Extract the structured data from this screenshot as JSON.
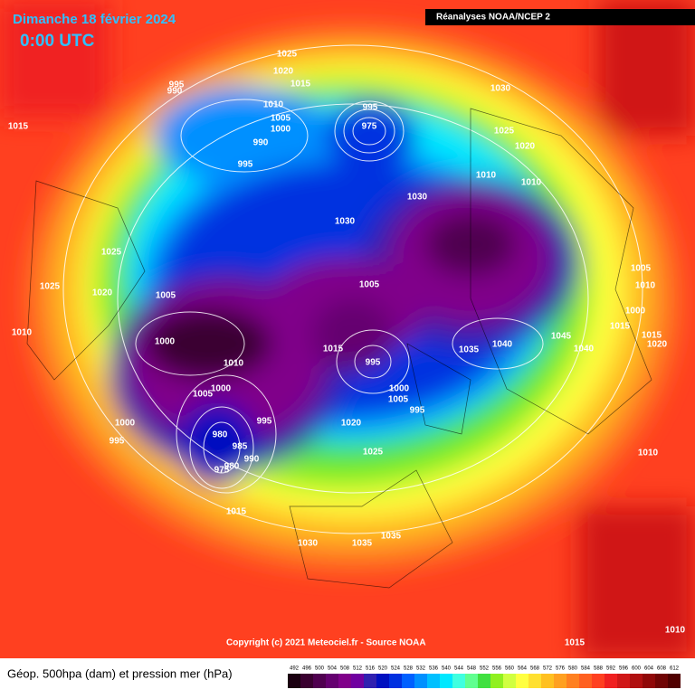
{
  "header": {
    "date": "Dimanche 18 février 2024",
    "time": "0:00 UTC",
    "source": "Réanalyses NOAA/NCEP 2"
  },
  "footer": {
    "copyright": "Copyright (c) 2021 Meteociel.fr - Source NOAA",
    "legend_title": "Géop. 500hpa (dam) et pression mer (hPa)"
  },
  "scale": {
    "values": [
      492,
      496,
      500,
      504,
      508,
      512,
      516,
      520,
      524,
      528,
      532,
      536,
      540,
      544,
      548,
      552,
      556,
      560,
      564,
      568,
      572,
      576,
      580,
      584,
      588,
      592,
      596,
      600,
      604,
      608,
      612
    ],
    "colors": [
      "#1a0010",
      "#3a0030",
      "#500050",
      "#650070",
      "#80008a",
      "#7000a0",
      "#3020b0",
      "#0010c0",
      "#0030e0",
      "#0060ff",
      "#0090ff",
      "#00c0ff",
      "#00e8ff",
      "#40ffe0",
      "#60ff90",
      "#40e040",
      "#90f020",
      "#d0ff40",
      "#ffff40",
      "#ffe030",
      "#ffc020",
      "#ffa020",
      "#ff8020",
      "#ff6020",
      "#ff4020",
      "#f02020",
      "#d01818",
      "#b01010",
      "#900808",
      "#700404",
      "#500000"
    ]
  },
  "isobar_labels": [
    "1015",
    "1025",
    "1020",
    "1015",
    "995",
    "990",
    "1010",
    "1005",
    "1000",
    "990",
    "995",
    "995",
    "975",
    "1030",
    "1025",
    "1020",
    "1010",
    "1010",
    "1030",
    "1030",
    "1025",
    "1025",
    "1020",
    "1005",
    "1005",
    "1010",
    "1000",
    "1015",
    "995",
    "1010",
    "1035",
    "1040",
    "1045",
    "1040",
    "1005",
    "1010",
    "1000",
    "1015",
    "1015",
    "1020",
    "1005",
    "1000",
    "1000",
    "1005",
    "995",
    "995",
    "1020",
    "1000",
    "995",
    "980",
    "985",
    "990",
    "980",
    "975",
    "1025",
    "1010",
    "1015",
    "1030",
    "1035",
    "1035",
    "1010",
    "1015"
  ]
}
